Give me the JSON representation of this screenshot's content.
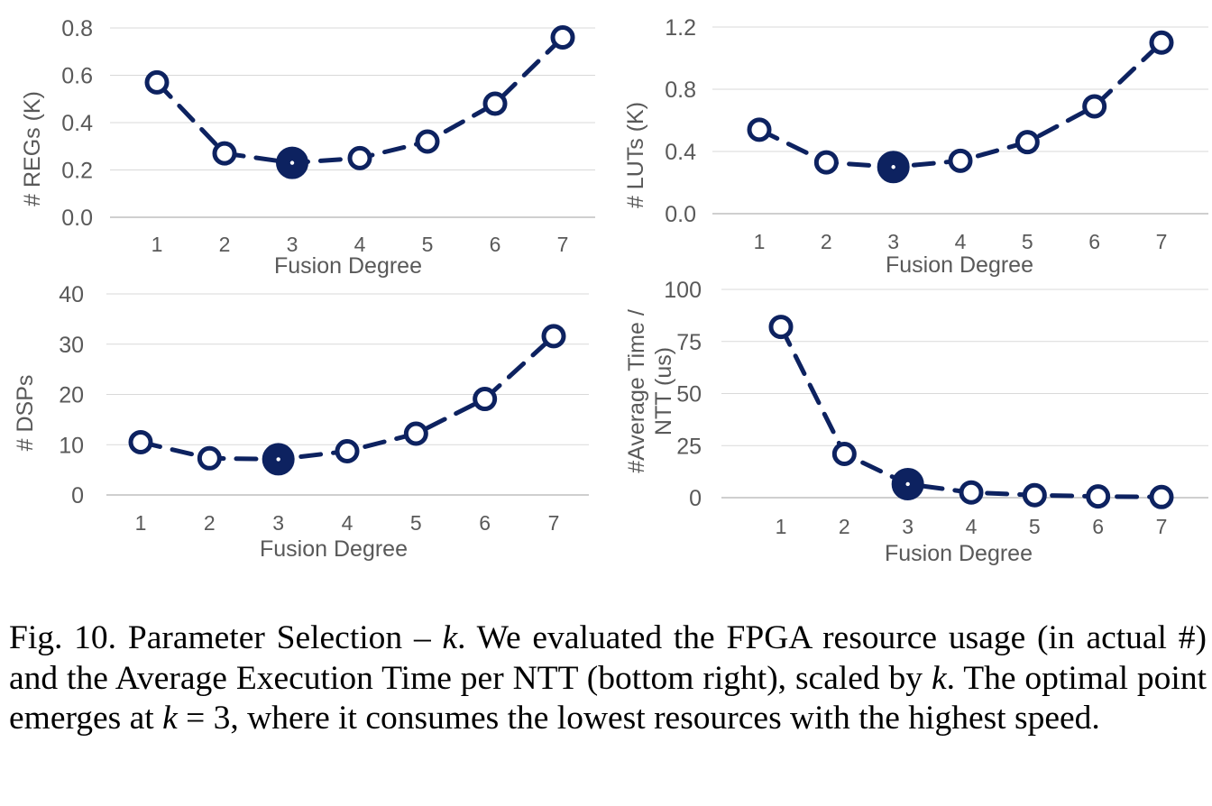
{
  "colors": {
    "line": "#0d2260",
    "grid": "#d9d9d9",
    "axis": "#bfbfbf",
    "text": "#595959",
    "marker_fill": "#ffffff"
  },
  "chart_data": [
    {
      "type": "line",
      "x": [
        1,
        2,
        3,
        4,
        5,
        6,
        7
      ],
      "series": [
        {
          "values": [
            0.57,
            0.27,
            0.23,
            0.25,
            0.32,
            0.48,
            0.76
          ]
        }
      ],
      "highlight_x": 3,
      "xlabel": "Fusion Degree",
      "ylabel": "# REGs (K)",
      "yticks": [
        "0.0",
        "0.2",
        "0.4",
        "0.6",
        "0.8"
      ],
      "ylim": [
        0,
        0.8
      ],
      "grid": true
    },
    {
      "type": "line",
      "x": [
        1,
        2,
        3,
        4,
        5,
        6,
        7
      ],
      "series": [
        {
          "values": [
            0.54,
            0.33,
            0.3,
            0.34,
            0.46,
            0.69,
            1.1
          ]
        }
      ],
      "highlight_x": 3,
      "xlabel": "Fusion Degree",
      "ylabel": "# LUTs (K)",
      "yticks": [
        "0.0",
        "0.4",
        "0.8",
        "1.2"
      ],
      "ylim": [
        0,
        1.2
      ],
      "grid": true
    },
    {
      "type": "line",
      "x": [
        1,
        2,
        3,
        4,
        5,
        6,
        7
      ],
      "series": [
        {
          "values": [
            10.5,
            7.3,
            7.1,
            8.7,
            12.2,
            19.1,
            31.6
          ]
        }
      ],
      "highlight_x": 3,
      "xlabel": "Fusion Degree",
      "ylabel": "# DSPs",
      "yticks": [
        "0",
        "10",
        "20",
        "30",
        "40"
      ],
      "ylim": [
        0,
        40
      ],
      "grid": true
    },
    {
      "type": "line",
      "x": [
        1,
        2,
        3,
        4,
        5,
        6,
        7
      ],
      "series": [
        {
          "values": [
            82,
            21,
            6.5,
            2.5,
            1.2,
            0.6,
            0.3
          ]
        }
      ],
      "highlight_x": 3,
      "xlabel": "Fusion Degree",
      "ylabel": "#Average Time / NTT (us)",
      "ylabel_lines": [
        "#Average Time /",
        "NTT (us)"
      ],
      "yticks": [
        "0",
        "25",
        "50",
        "75",
        "100"
      ],
      "ylim": [
        0,
        100
      ],
      "grid": true
    }
  ],
  "caption": {
    "part1": "Fig. 10.  Parameter Selection – ",
    "k1": "k",
    "part2": ". We evaluated the FPGA resource usage (in actual #) and the Average Execution Time per NTT (bottom right), scaled by ",
    "k2": "k",
    "part3": ". The optimal point emerges at ",
    "k3": "k",
    "part4": " = 3, where it consumes the lowest resources with the highest speed."
  }
}
